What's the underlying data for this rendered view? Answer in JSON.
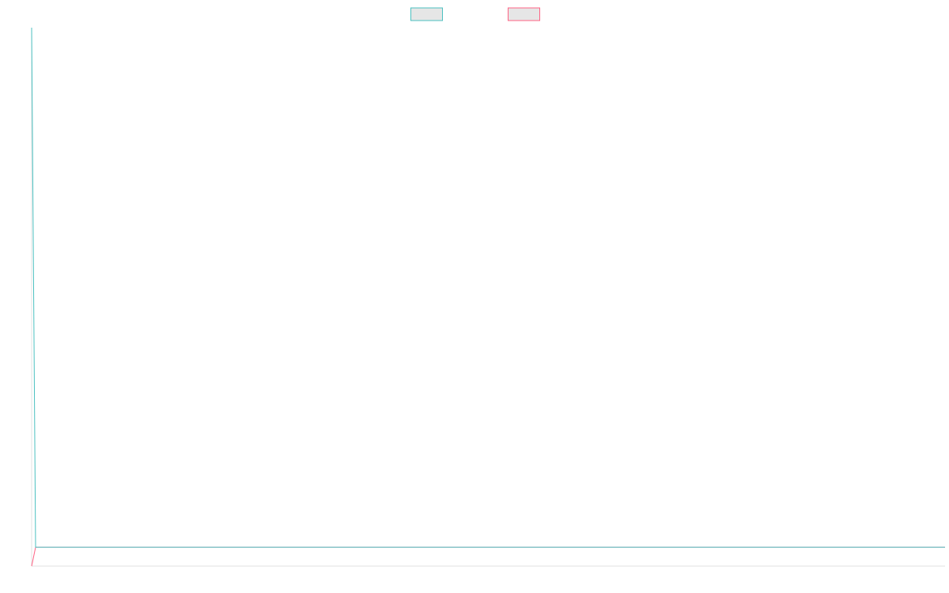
{
  "chart_data": {
    "type": "line",
    "x": [
      0,
      1,
      231
    ],
    "xlim": [
      0,
      231
    ],
    "ylim": [
      0,
      100
    ],
    "legend": "top",
    "series": [
      {
        "color": "#ff6384",
        "values": [
          0,
          3.5,
          3.5
        ]
      },
      {
        "color": "#4bc0c0",
        "values": [
          100,
          3.5,
          3.5
        ]
      }
    ]
  }
}
